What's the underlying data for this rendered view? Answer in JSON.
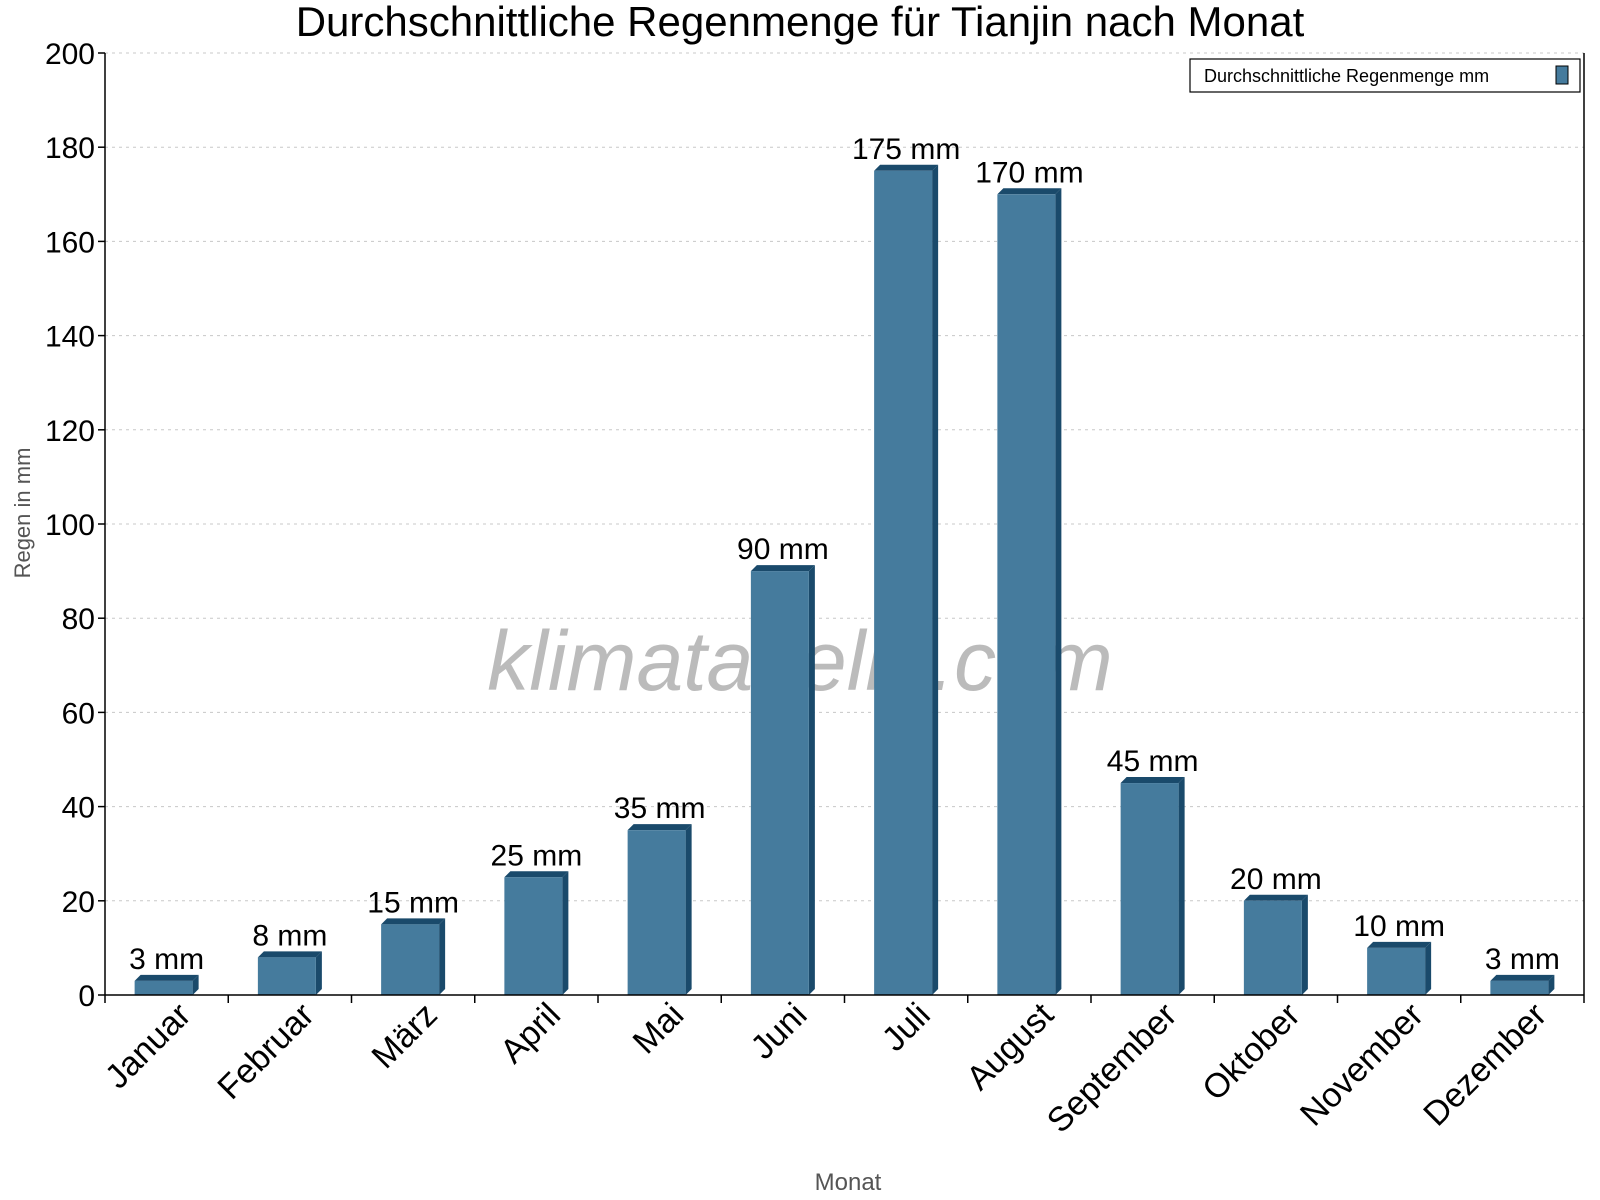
{
  "chart_data": {
    "type": "bar",
    "title": "Durchschnittliche Regenmenge für Tianjin nach Monat",
    "xlabel": "Monat",
    "ylabel": "Regen in mm",
    "ylim": [
      0,
      200
    ],
    "yticks": [
      0,
      20,
      40,
      60,
      80,
      100,
      120,
      140,
      160,
      180,
      200
    ],
    "grid": true,
    "legend_placement": "top-right",
    "categories": [
      "Januar",
      "Februar",
      "März",
      "April",
      "Mai",
      "Juni",
      "Juli",
      "August",
      "September",
      "Oktober",
      "November",
      "Dezember"
    ],
    "series": [
      {
        "name": "Durchschnittliche Regenmenge mm",
        "values": [
          3,
          8,
          15,
          25,
          35,
          90,
          175,
          170,
          45,
          20,
          10,
          3
        ]
      }
    ],
    "data_labels": [
      "3 mm",
      "8 mm",
      "15 mm",
      "25 mm",
      "35 mm",
      "90 mm",
      "175 mm",
      "170 mm",
      "45 mm",
      "20 mm",
      "10 mm",
      "3 mm"
    ],
    "watermark": "klimatabelle.com",
    "colors": {
      "bar": "#457b9d",
      "bar_dark": "#1a4a6b",
      "grid": "#c8c8c8"
    }
  }
}
